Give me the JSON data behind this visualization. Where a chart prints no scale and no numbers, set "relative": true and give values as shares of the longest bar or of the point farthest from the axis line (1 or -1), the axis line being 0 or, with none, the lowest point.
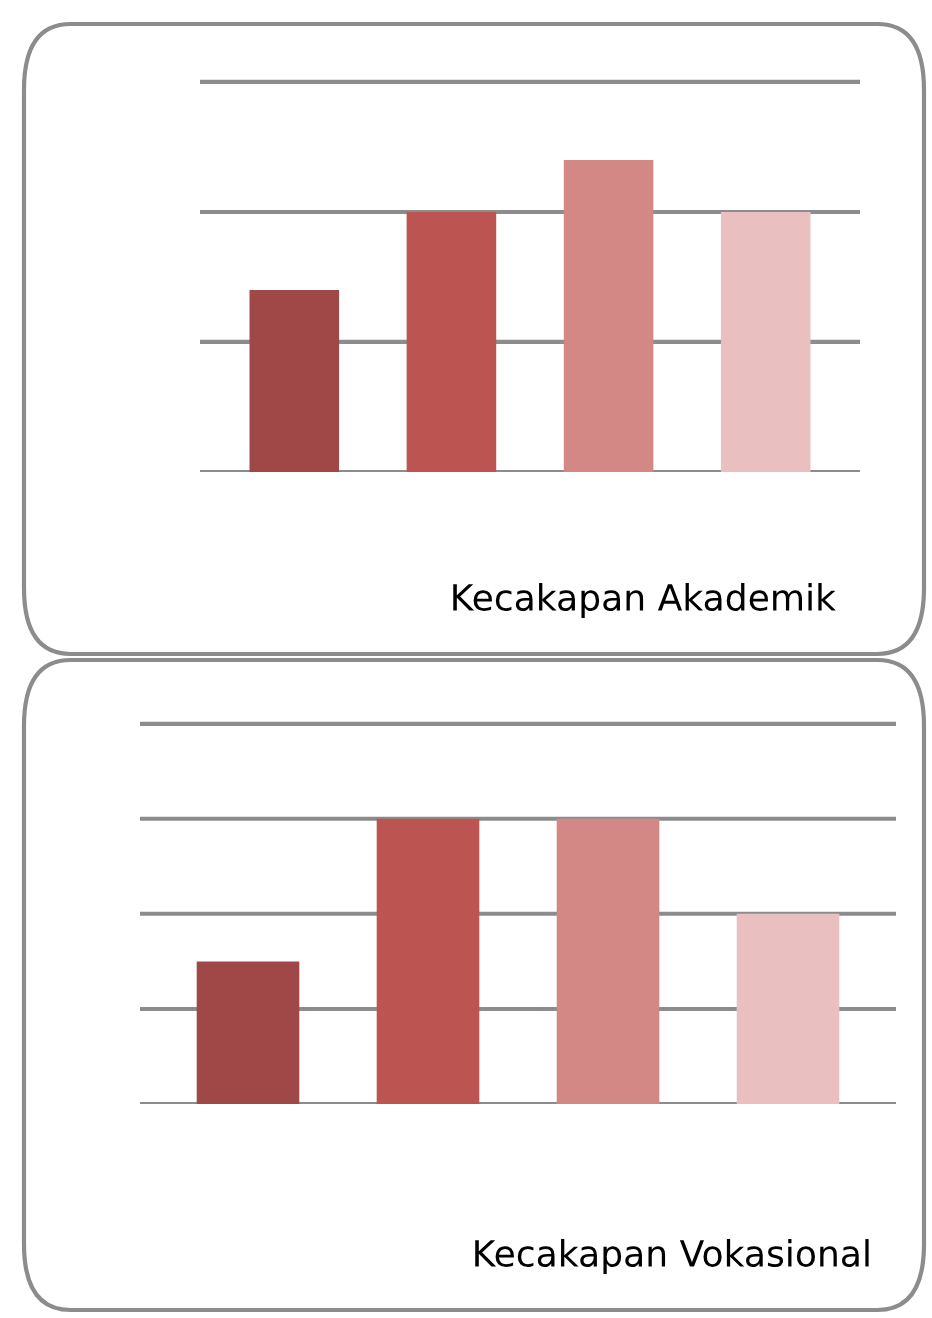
{
  "chart_data": [
    {
      "type": "bar",
      "title": "Kecakapan Akademik",
      "categories": [
        null,
        null,
        null,
        null
      ],
      "values": [
        0.583,
        0.833,
        1,
        0.833
      ],
      "colors": [
        "#a04848",
        "#bc5452",
        "#d48886",
        "#e9bfbf"
      ],
      "relative": true,
      "ref_lines": [
        {
          "axis": "y",
          "value": 0.417,
          "color": "#8c8c8c"
        },
        {
          "axis": "y",
          "value": 0.833,
          "color": "#8c8c8c"
        },
        {
          "axis": "y",
          "value": 1.25,
          "color": "#8c8c8c"
        }
      ]
    },
    {
      "type": "bar",
      "title": "Kecakapan Vokasional",
      "categories": [
        null,
        null,
        null,
        null
      ],
      "values": [
        0.5,
        1,
        1,
        0.667
      ],
      "colors": [
        "#a04848",
        "#bc5452",
        "#d48886",
        "#e9bfbf"
      ],
      "relative": true,
      "ref_lines": [
        {
          "axis": "y",
          "value": 0.333,
          "color": "#8c8c8c"
        },
        {
          "axis": "y",
          "value": 0.667,
          "color": "#8c8c8c"
        },
        {
          "axis": "y",
          "value": 1,
          "color": "#8c8c8c"
        },
        {
          "axis": "y",
          "value": 1.333,
          "color": "#8c8c8c"
        }
      ]
    }
  ]
}
